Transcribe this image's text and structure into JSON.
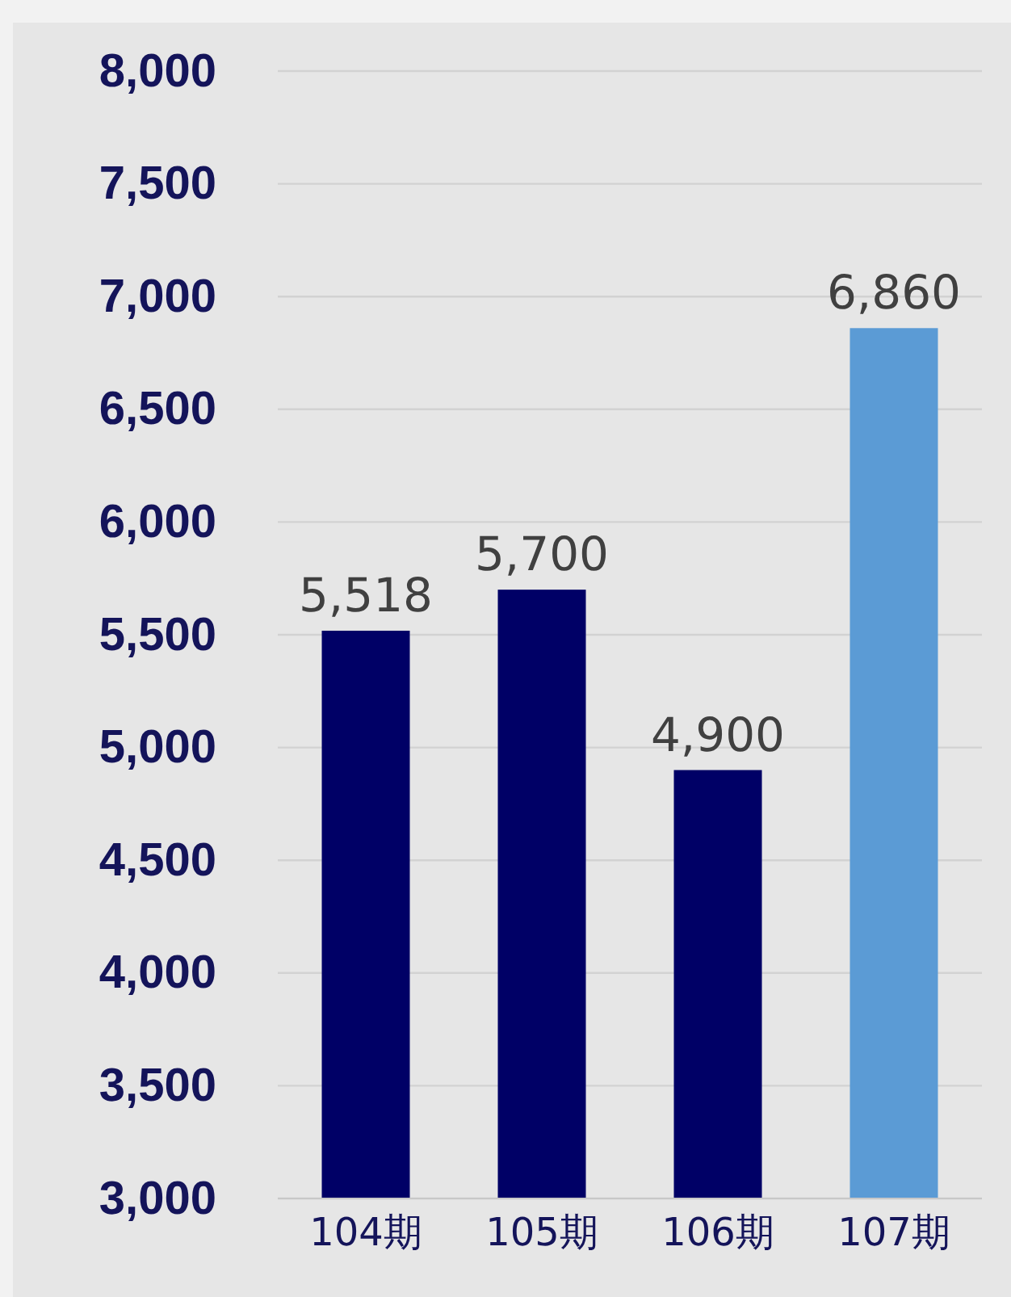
{
  "chart_data": {
    "type": "bar",
    "categories": [
      "104期",
      "105期",
      "106期",
      "107期"
    ],
    "values": [
      5518,
      5700,
      4900,
      6860
    ],
    "colors": [
      "#000066",
      "#000066",
      "#000066",
      "#5b9bd5"
    ],
    "ylim": [
      3000,
      8000
    ],
    "yticks": [
      {
        "value": 3000,
        "label": "3,000"
      },
      {
        "value": 3500,
        "label": "3,500"
      },
      {
        "value": 4000,
        "label": "4,000"
      },
      {
        "value": 4500,
        "label": "4,500"
      },
      {
        "value": 5000,
        "label": "5,000"
      },
      {
        "value": 5500,
        "label": "5,500"
      },
      {
        "value": 6000,
        "label": "6,000"
      },
      {
        "value": 6500,
        "label": "6,500"
      },
      {
        "value": 7000,
        "label": "7,000"
      },
      {
        "value": 7500,
        "label": "7,500"
      },
      {
        "value": 8000,
        "label": "8,000"
      }
    ],
    "grid": true,
    "value_labels": [
      "5,518",
      "5,700",
      "4,900",
      "6,860"
    ]
  }
}
